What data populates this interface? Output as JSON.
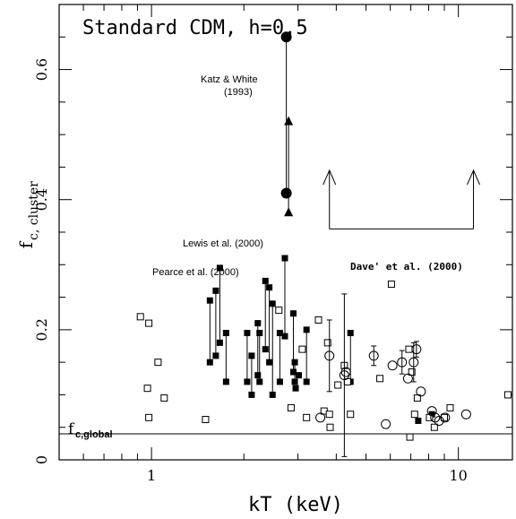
{
  "chart_data": {
    "type": "scatter",
    "title": "Standard CDM, h=0.5",
    "xlabel": "kT (keV)",
    "ylabel_main": "f",
    "ylabel_sub": "c, cluster",
    "xscale": "log",
    "xlim": [
      0.5,
      15
    ],
    "ylim": [
      0,
      0.7
    ],
    "xticks": [
      {
        "value": 1,
        "label": "1"
      },
      {
        "value": 10,
        "label": "10"
      }
    ],
    "yticks": [
      {
        "value": 0,
        "label": "0"
      },
      {
        "value": 0.2,
        "label": "0.2"
      },
      {
        "value": 0.4,
        "label": "0.4"
      },
      {
        "value": 0.6,
        "label": "0.6"
      }
    ],
    "reference_line": {
      "y": 0.04,
      "label_main": "f",
      "label_sub": "c,global"
    },
    "katz_white": {
      "label_line1": "Katz & White",
      "label_line2": "(1993)",
      "x": 2.75,
      "circles": [
        0.65,
        0.41
      ],
      "triangles": [
        0.52,
        0.38
      ]
    },
    "lewis_label": "Lewis et al. (2000)",
    "pearce_label": "Pearce et al. (2000)",
    "dave_label": "Dave' et al. (2000)",
    "dave_arrows": {
      "x": [
        3.8,
        11.2
      ],
      "y_base": 0.355,
      "y_tip": 0.445
    },
    "pearce_pairs": [
      {
        "x": 1.55,
        "y1": 0.245,
        "y2": 0.15
      },
      {
        "x": 1.62,
        "y1": 0.26,
        "y2": 0.16
      },
      {
        "x": 1.67,
        "y1": 0.295,
        "y2": 0.18
      },
      {
        "x": 1.75,
        "y1": 0.195,
        "y2": 0.12
      },
      {
        "x": 2.05,
        "y1": 0.195,
        "y2": 0.12
      },
      {
        "x": 2.12,
        "y1": 0.16,
        "y2": 0.1
      },
      {
        "x": 2.22,
        "y1": 0.21,
        "y2": 0.13
      },
      {
        "x": 2.25,
        "y1": 0.195,
        "y2": 0.12
      },
      {
        "x": 2.35,
        "y1": 0.275,
        "y2": 0.17
      },
      {
        "x": 2.42,
        "y1": 0.265,
        "y2": 0.15
      },
      {
        "x": 2.48,
        "y1": 0.24,
        "y2": 0.1
      },
      {
        "x": 2.62,
        "y1": 0.195,
        "y2": 0.12
      },
      {
        "x": 2.72,
        "y1": 0.31,
        "y2": 0.19
      },
      {
        "x": 2.9,
        "y1": 0.225,
        "y2": 0.135
      },
      {
        "x": 2.93,
        "y1": 0.15,
        "y2": 0.12
      },
      {
        "x": 3.2,
        "y1": 0.2,
        "y2": 0.12
      },
      {
        "x": 4.45,
        "y1": 0.195,
        "y2": 0.12
      }
    ],
    "pearce_singles": [
      {
        "x": 2.95,
        "y": 0.11
      },
      {
        "x": 3.02,
        "y": 0.13
      },
      {
        "x": 7.4,
        "y": 0.06
      },
      {
        "x": 8.2,
        "y": 0.07
      }
    ],
    "open_squares": [
      {
        "x": 0.92,
        "y": 0.22
      },
      {
        "x": 0.98,
        "y": 0.21
      },
      {
        "x": 1.05,
        "y": 0.15
      },
      {
        "x": 0.97,
        "y": 0.11
      },
      {
        "x": 0.98,
        "y": 0.065
      },
      {
        "x": 1.1,
        "y": 0.095
      },
      {
        "x": 1.5,
        "y": 0.062
      },
      {
        "x": 2.6,
        "y": 0.23
      },
      {
        "x": 2.85,
        "y": 0.08
      },
      {
        "x": 3.1,
        "y": 0.17
      },
      {
        "x": 3.2,
        "y": 0.065
      },
      {
        "x": 3.5,
        "y": 0.215
      },
      {
        "x": 3.65,
        "y": 0.075
      },
      {
        "x": 3.75,
        "y": 0.18
      },
      {
        "x": 3.8,
        "y": 0.07
      },
      {
        "x": 3.82,
        "y": 0.05
      },
      {
        "x": 4.05,
        "y": 0.115
      },
      {
        "x": 4.25,
        "y": 0.145
      },
      {
        "x": 4.35,
        "y": 0.12
      },
      {
        "x": 4.45,
        "y": 0.07
      },
      {
        "x": 5.55,
        "y": 0.125
      },
      {
        "x": 6.05,
        "y": 0.27
      },
      {
        "x": 6.9,
        "y": 0.17
      },
      {
        "x": 7.05,
        "y": 0.135
      },
      {
        "x": 7.2,
        "y": 0.07
      },
      {
        "x": 7.35,
        "y": 0.095
      },
      {
        "x": 8.05,
        "y": 0.065
      },
      {
        "x": 8.35,
        "y": 0.05
      },
      {
        "x": 9.0,
        "y": 0.065
      },
      {
        "x": 9.4,
        "y": 0.08
      },
      {
        "x": 14.5,
        "y": 0.1
      },
      {
        "x": 6.95,
        "y": 0.035
      }
    ],
    "open_circles": [
      {
        "x": 3.8,
        "y": 0.16,
        "err": 0.055
      },
      {
        "x": 4.25,
        "y": 0.13,
        "err": 0.125
      },
      {
        "x": 4.3,
        "y": 0.135,
        "err": 0.0
      },
      {
        "x": 3.55,
        "y": 0.065,
        "err": 0.0
      },
      {
        "x": 5.3,
        "y": 0.16,
        "err": 0.015
      },
      {
        "x": 5.8,
        "y": 0.055,
        "err": 0.0
      },
      {
        "x": 6.1,
        "y": 0.145,
        "err": 0.0
      },
      {
        "x": 6.55,
        "y": 0.15,
        "err": 0.018
      },
      {
        "x": 7.15,
        "y": 0.15,
        "err": 0.03
      },
      {
        "x": 7.55,
        "y": 0.105,
        "err": 0.0
      },
      {
        "x": 7.3,
        "y": 0.17,
        "err": 0.012
      },
      {
        "x": 8.2,
        "y": 0.075,
        "err": 0.0
      },
      {
        "x": 8.4,
        "y": 0.065,
        "err": 0.0
      },
      {
        "x": 8.65,
        "y": 0.06,
        "err": 0.0
      },
      {
        "x": 9.05,
        "y": 0.065,
        "err": 0.0
      },
      {
        "x": 10.6,
        "y": 0.07,
        "err": 0.0
      },
      {
        "x": 6.85,
        "y": 0.125,
        "err": 0.0
      }
    ],
    "colors": {
      "ink": "#000000",
      "background": "#ffffff"
    }
  }
}
